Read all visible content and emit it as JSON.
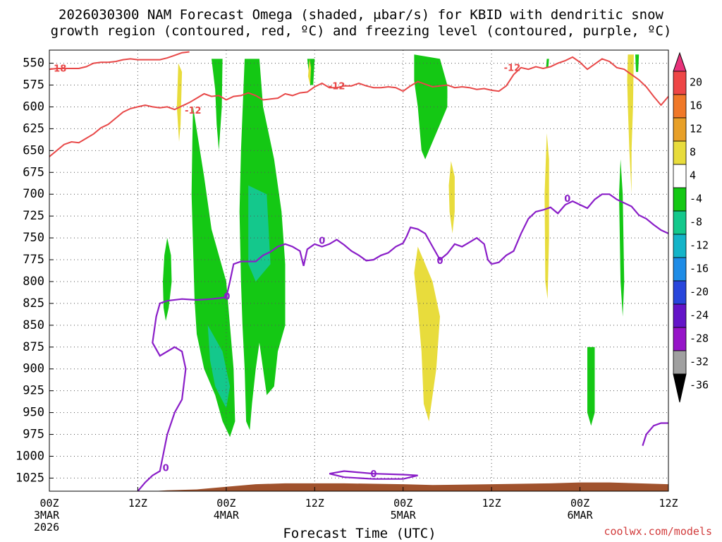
{
  "title_line1": "2026030300 NAM Forecast Omega (shaded, μbar/s) for KBID with dendritic snow",
  "title_line2": "growth region (contoured, red, ºC) and freezing level (contoured, purple, ºC)",
  "credit": "coolwx.com/models",
  "chart_data": {
    "type": "heatmap",
    "title": "2026030300 NAM Forecast Omega (shaded, μbar/s) for KBID with dendritic snow growth region (contoured, red, ºC) and freezing level (contoured, purple, ºC)",
    "xlabel": "Forecast Time (UTC)",
    "ylabel": "",
    "x_ticks": [
      {
        "hour": 0,
        "labels": [
          "00Z",
          "3MAR",
          "2026"
        ]
      },
      {
        "hour": 12,
        "labels": [
          "12Z"
        ]
      },
      {
        "hour": 24,
        "labels": [
          "00Z",
          "4MAR"
        ]
      },
      {
        "hour": 36,
        "labels": [
          "12Z"
        ]
      },
      {
        "hour": 48,
        "labels": [
          "00Z",
          "5MAR"
        ]
      },
      {
        "hour": 60,
        "labels": [
          "12Z"
        ]
      },
      {
        "hour": 72,
        "labels": [
          "00Z",
          "6MAR"
        ]
      },
      {
        "hour": 84,
        "labels": [
          "12Z"
        ]
      }
    ],
    "xlim_hours": [
      0,
      84
    ],
    "y_ticks": [
      550,
      575,
      600,
      625,
      650,
      675,
      700,
      725,
      750,
      775,
      800,
      825,
      850,
      875,
      900,
      925,
      950,
      975,
      1000,
      1025
    ],
    "ylim_mb": [
      535,
      1040
    ],
    "grid": "dotted",
    "colorbar": {
      "ticks": [
        "20",
        "16",
        "12",
        "8",
        "4",
        "-4",
        "-8",
        "-12",
        "-16",
        "-20",
        "-24",
        "-28",
        "-32",
        "-36"
      ],
      "colors": [
        "#e8327a",
        "#ee4646",
        "#f07828",
        "#e8a028",
        "#e8dc3c",
        "#ffffff",
        "#14c814",
        "#14c88c",
        "#14b4c8",
        "#1e8ce6",
        "#2846dc",
        "#6414c8",
        "#9614c8",
        "#a0a0a0",
        "#000000"
      ]
    },
    "contours": {
      "dendritic_minus12": {
        "color": "#e84848",
        "labels": [
          "-18",
          "-12",
          "-12",
          "-12"
        ],
        "points": [
          [
            0,
            657
          ],
          [
            1,
            650
          ],
          [
            2,
            643
          ],
          [
            3,
            640
          ],
          [
            4,
            641
          ],
          [
            5,
            636
          ],
          [
            6,
            631
          ],
          [
            7,
            624
          ],
          [
            8,
            620
          ],
          [
            9,
            613
          ],
          [
            10,
            606
          ],
          [
            11,
            602
          ],
          [
            12,
            600
          ],
          [
            13,
            598
          ],
          [
            14,
            600
          ],
          [
            15,
            601
          ],
          [
            16,
            600
          ],
          [
            17,
            603
          ],
          [
            18,
            599
          ],
          [
            19,
            595
          ],
          [
            20,
            590
          ],
          [
            21,
            585
          ],
          [
            22,
            588
          ],
          [
            23,
            587
          ],
          [
            24,
            592
          ],
          [
            25,
            588
          ],
          [
            26,
            587
          ],
          [
            27,
            584
          ],
          [
            28,
            587
          ],
          [
            29,
            592
          ],
          [
            30,
            591
          ],
          [
            31,
            590
          ],
          [
            32,
            585
          ],
          [
            33,
            587
          ],
          [
            34,
            584
          ],
          [
            35,
            583
          ],
          [
            36,
            577
          ],
          [
            37,
            573
          ],
          [
            38,
            578
          ],
          [
            39,
            578
          ],
          [
            40,
            576
          ],
          [
            41,
            576
          ],
          [
            42,
            573
          ],
          [
            43,
            576
          ],
          [
            44,
            578
          ],
          [
            45,
            578
          ],
          [
            46,
            577
          ],
          [
            47,
            578
          ],
          [
            48,
            582
          ],
          [
            49,
            576
          ],
          [
            50,
            571
          ],
          [
            51,
            574
          ],
          [
            52,
            577
          ],
          [
            53,
            576
          ],
          [
            54,
            575
          ],
          [
            55,
            578
          ],
          [
            56,
            577
          ],
          [
            57,
            578
          ],
          [
            58,
            580
          ],
          [
            59,
            579
          ],
          [
            60,
            581
          ],
          [
            61,
            582
          ],
          [
            62,
            576
          ],
          [
            63,
            563
          ],
          [
            64,
            555
          ],
          [
            65,
            557
          ],
          [
            66,
            554
          ],
          [
            67,
            556
          ],
          [
            68,
            554
          ],
          [
            69,
            550
          ],
          [
            70,
            547
          ],
          [
            71,
            543
          ],
          [
            72,
            549
          ],
          [
            73,
            557
          ],
          [
            74,
            551
          ],
          [
            75,
            545
          ],
          [
            76,
            548
          ],
          [
            77,
            555
          ],
          [
            78,
            557
          ],
          [
            79,
            563
          ],
          [
            80,
            569
          ],
          [
            81,
            577
          ],
          [
            82,
            588
          ],
          [
            83,
            598
          ],
          [
            84,
            588
          ]
        ]
      },
      "dendritic_minus18": {
        "color": "#e84848",
        "points": [
          [
            0,
            557
          ],
          [
            1,
            556
          ],
          [
            2,
            556
          ],
          [
            3,
            556
          ],
          [
            4,
            556
          ],
          [
            5,
            554
          ],
          [
            6,
            550
          ],
          [
            7,
            549
          ],
          [
            8,
            549
          ],
          [
            9,
            548
          ],
          [
            10,
            546
          ],
          [
            11,
            545
          ],
          [
            12,
            546
          ],
          [
            13,
            546
          ],
          [
            14,
            546
          ],
          [
            15,
            546
          ],
          [
            16,
            544
          ],
          [
            17,
            541
          ],
          [
            18,
            538
          ],
          [
            19,
            537
          ]
        ]
      },
      "freezing_level_0": {
        "color": "#8a1ec8",
        "labels": [
          "0",
          "0",
          "0",
          "0",
          "0",
          "0"
        ],
        "points": [
          [
            12,
            1040
          ],
          [
            13,
            1030
          ],
          [
            14,
            1022
          ],
          [
            15,
            1017
          ],
          [
            16,
            975
          ],
          [
            17,
            950
          ],
          [
            18,
            935
          ],
          [
            18.5,
            900
          ],
          [
            18,
            880
          ],
          [
            17,
            875
          ],
          [
            16,
            880
          ],
          [
            15,
            885
          ],
          [
            14,
            870
          ],
          [
            14.5,
            840
          ],
          [
            15,
            825
          ],
          [
            16,
            822
          ],
          [
            18,
            820
          ],
          [
            20,
            821
          ],
          [
            22,
            820
          ],
          [
            24,
            818
          ],
          [
            24.5,
            800
          ],
          [
            25,
            780
          ],
          [
            26,
            777
          ],
          [
            28,
            777
          ],
          [
            29,
            770
          ],
          [
            30,
            766
          ],
          [
            31,
            760
          ],
          [
            32,
            757
          ],
          [
            33,
            760
          ],
          [
            34,
            765
          ],
          [
            34.5,
            782
          ],
          [
            35,
            763
          ],
          [
            36,
            757
          ],
          [
            37,
            760
          ],
          [
            38,
            757
          ],
          [
            39,
            752
          ],
          [
            40,
            758
          ],
          [
            41,
            765
          ],
          [
            42,
            770
          ],
          [
            43,
            776
          ],
          [
            44,
            775
          ],
          [
            45,
            770
          ],
          [
            46,
            767
          ],
          [
            47,
            760
          ],
          [
            48,
            756
          ],
          [
            48.5,
            748
          ],
          [
            49,
            738
          ],
          [
            50,
            740
          ],
          [
            51,
            745
          ],
          [
            52,
            760
          ],
          [
            53,
            775
          ],
          [
            54,
            768
          ],
          [
            55,
            757
          ],
          [
            56,
            760
          ],
          [
            57,
            755
          ],
          [
            58,
            750
          ],
          [
            59,
            757
          ],
          [
            59.5,
            775
          ],
          [
            60,
            780
          ],
          [
            61,
            778
          ],
          [
            62,
            770
          ],
          [
            63,
            765
          ],
          [
            64,
            745
          ],
          [
            65,
            728
          ],
          [
            66,
            720
          ],
          [
            67,
            718
          ],
          [
            68,
            715
          ],
          [
            69,
            722
          ],
          [
            70,
            712
          ],
          [
            71,
            708
          ],
          [
            72,
            712
          ],
          [
            73,
            716
          ],
          [
            74,
            706
          ],
          [
            75,
            700
          ],
          [
            76,
            700
          ],
          [
            77,
            706
          ],
          [
            78,
            710
          ],
          [
            79,
            714
          ],
          [
            80,
            724
          ],
          [
            81,
            728
          ],
          [
            82,
            735
          ],
          [
            83,
            741
          ],
          [
            84,
            745
          ]
        ]
      }
    },
    "terrain_color": "#a0522d",
    "omega_features": [
      {
        "sign": "upward",
        "colors": [
          "green",
          "teal"
        ],
        "hours": [
          16,
          26
        ]
      },
      {
        "sign": "upward",
        "colors": [
          "green",
          "teal"
        ],
        "hours": [
          25,
          31
        ]
      },
      {
        "sign": "upward",
        "colors": [
          "green"
        ],
        "hours": [
          48,
          54
        ]
      },
      {
        "sign": "downward",
        "colors": [
          "yellow"
        ],
        "hours": [
          49,
          56
        ]
      },
      {
        "sign": "upward",
        "colors": [
          "green"
        ],
        "hours": [
          73,
          78
        ]
      },
      {
        "sign": "downward",
        "colors": [
          "yellow"
        ],
        "hours": [
          78,
          79
        ]
      }
    ]
  }
}
